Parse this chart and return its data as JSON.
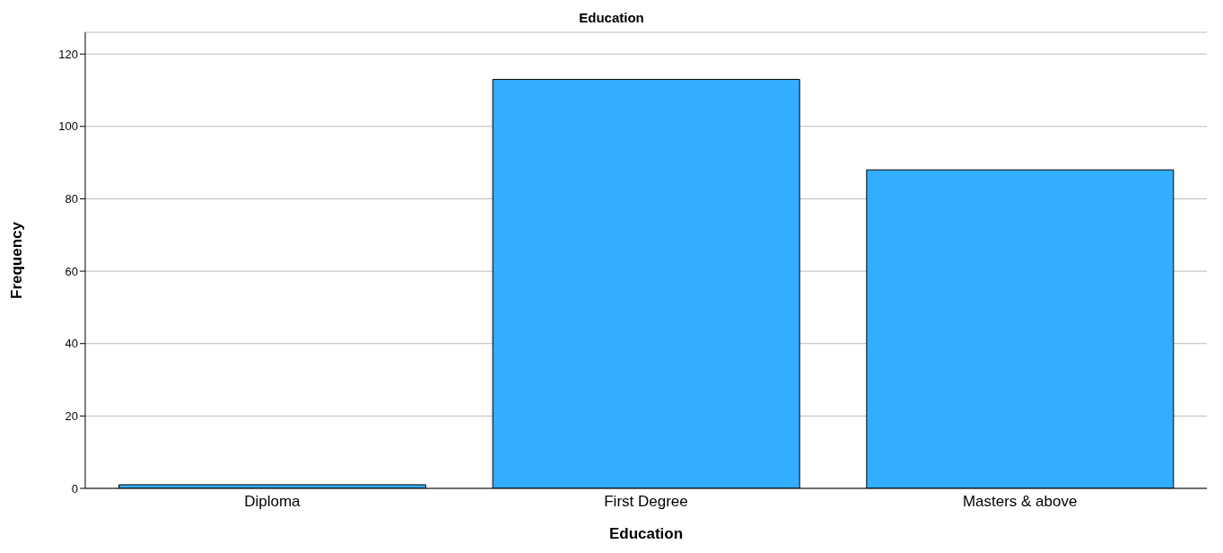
{
  "chart_data": {
    "type": "bar",
    "title": "Education",
    "xlabel": "Education",
    "ylabel": "Frequency",
    "categories": [
      "Diploma",
      "First Degree",
      "Masters & above"
    ],
    "values": [
      1,
      113,
      88
    ],
    "color": "#33adff",
    "ylim": [
      0,
      126
    ],
    "yticks": [
      0,
      20,
      40,
      60,
      80,
      100,
      120
    ],
    "grid": "y"
  }
}
